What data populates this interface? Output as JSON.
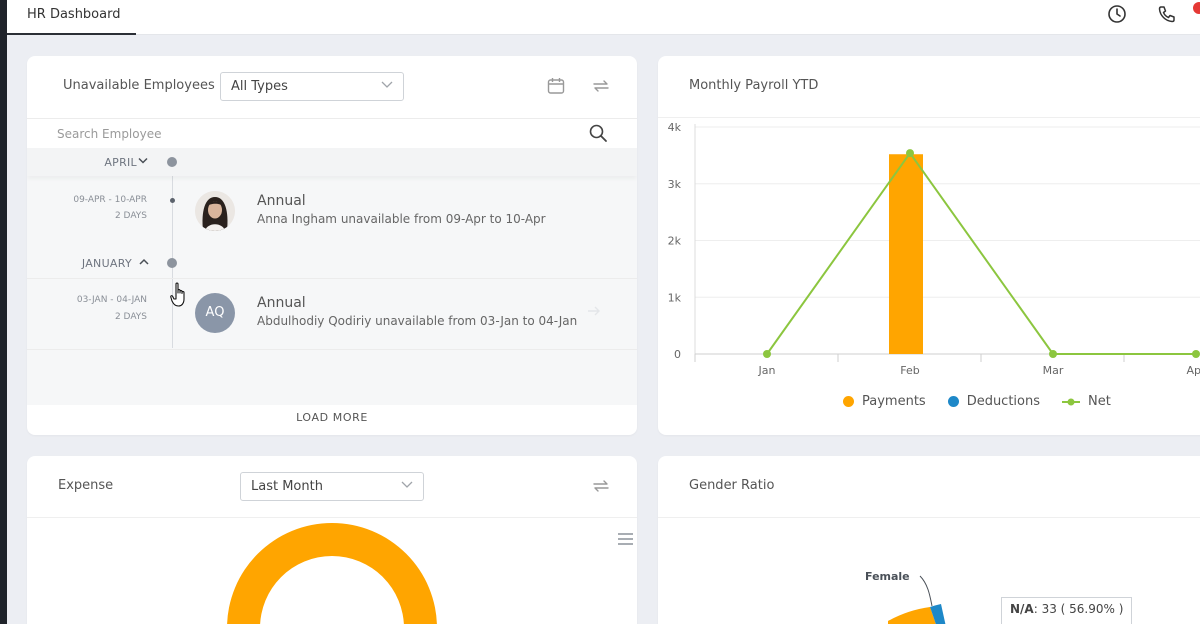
{
  "topbar": {
    "tab_label": "HR Dashboard",
    "icons": [
      "clock-icon",
      "phone-icon"
    ]
  },
  "unavailable": {
    "title": "Unavailable Employees",
    "filter_value": "All Types",
    "search_placeholder": "Search Employee",
    "months": [
      {
        "label": "APRIL",
        "entries": [
          {
            "date_range": "09-APR - 10-APR",
            "days": "2 DAYS",
            "type": "Annual",
            "description": "Anna Ingham unavailable from 09-Apr to 10-Apr",
            "avatar": "photo"
          }
        ]
      },
      {
        "label": "JANUARY",
        "entries": [
          {
            "date_range": "03-JAN - 04-JAN",
            "days": "2 DAYS",
            "type": "Annual",
            "description": "Abdulhodiy Qodiriy unavailable from 03-Jan to 04-Jan",
            "avatar": "AQ"
          }
        ]
      }
    ],
    "load_more_label": "LOAD MORE"
  },
  "payroll": {
    "title": "Monthly Payroll YTD",
    "chart_data": {
      "type": "bar",
      "categories": [
        "Jan",
        "Feb",
        "Mar",
        "Apr"
      ],
      "yticks": [
        "0",
        "1k",
        "2k",
        "3k",
        "4k"
      ],
      "ylim": [
        0,
        4000
      ],
      "series": [
        {
          "name": "Payments",
          "type": "bar",
          "color": "#ffa500",
          "values": [
            0,
            3520,
            0,
            0
          ]
        },
        {
          "name": "Deductions",
          "type": "bar",
          "color": "#1e88c8",
          "values": [
            0,
            0,
            0,
            0
          ]
        },
        {
          "name": "Net",
          "type": "line",
          "color": "#8cc63f",
          "values": [
            0,
            3540,
            0,
            0
          ]
        }
      ],
      "legend_position": "bottom"
    }
  },
  "expense": {
    "title": "Expense",
    "filter_value": "Last Month",
    "donut_color": "#ffa500"
  },
  "gender": {
    "title": "Gender Ratio",
    "female_label": "Female",
    "tooltip_label": "N/A",
    "tooltip_value": ": 33 ( 56.90% )",
    "colors": {
      "na": "#ffa500",
      "female": "#1e88c8"
    }
  }
}
